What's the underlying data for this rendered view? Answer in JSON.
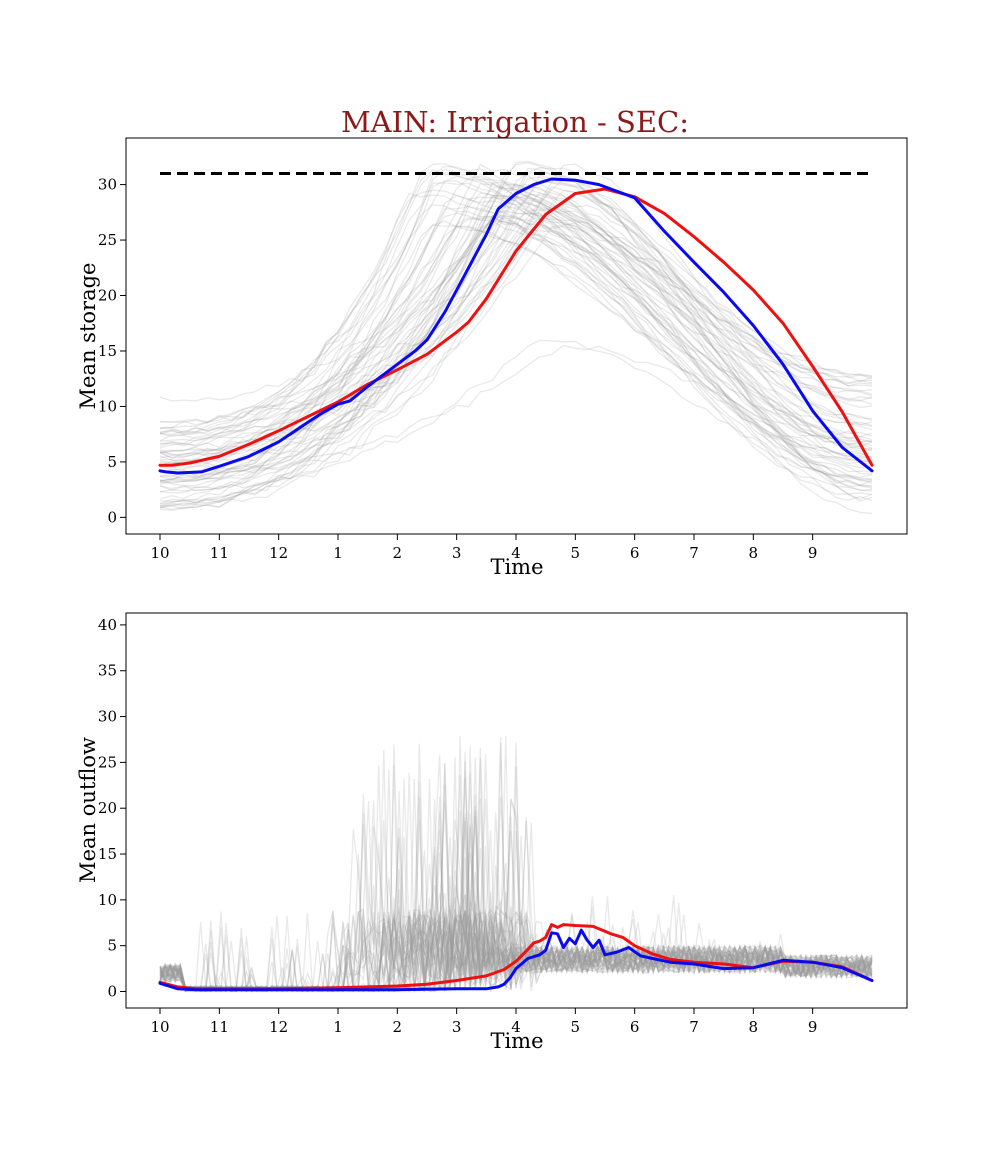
{
  "figure_title": "MAIN: Irrigation - SEC:",
  "colors": {
    "title": "#8b1a1a",
    "mean_series": "#ee1111",
    "highlight_series": "#0a0aee",
    "ensemble": "#9a9a9a",
    "capacity_line": "#000000",
    "axes": "#000000"
  },
  "chart_data": [
    {
      "type": "line",
      "title": "",
      "xlabel": "Time",
      "ylabel": "Mean storage",
      "x_tick_labels": [
        "10",
        "11",
        "12",
        "1",
        "2",
        "3",
        "4",
        "5",
        "6",
        "7",
        "8",
        "9"
      ],
      "x_range_months": [
        0,
        12
      ],
      "ylim": [
        -1.5,
        34.2
      ],
      "y_ticks": [
        0,
        5,
        10,
        15,
        20,
        25,
        30
      ],
      "grid": false,
      "legend": "none",
      "reference_line": {
        "style": "dashed",
        "y": 31,
        "x": [
          0,
          12
        ]
      },
      "series": [
        {
          "role": "mean",
          "x": [
            0,
            0.2,
            0.5,
            1.0,
            1.5,
            2.0,
            2.5,
            3.0,
            3.5,
            4.0,
            4.5,
            5.0,
            5.2,
            5.5,
            6.0,
            6.5,
            7.0,
            7.5,
            8.0,
            8.5,
            9.0,
            9.5,
            10.0,
            10.5,
            11.0,
            11.5,
            12.0
          ],
          "y": [
            4.7,
            4.7,
            4.9,
            5.5,
            6.6,
            7.8,
            9.1,
            10.4,
            12.0,
            13.3,
            14.7,
            16.7,
            17.6,
            19.7,
            24.0,
            27.3,
            29.2,
            29.6,
            28.9,
            27.4,
            25.3,
            23.0,
            20.5,
            17.5,
            13.6,
            9.5,
            4.7
          ]
        },
        {
          "role": "highlight",
          "x": [
            0,
            0.1,
            0.3,
            0.7,
            1.0,
            1.5,
            2.0,
            2.5,
            2.7,
            3.0,
            3.2,
            3.5,
            4.0,
            4.3,
            4.5,
            4.8,
            5.1,
            5.5,
            5.7,
            6.0,
            6.3,
            6.6,
            7.0,
            7.4,
            8.0,
            8.5,
            9.0,
            9.5,
            10.0,
            10.5,
            11.0,
            11.5,
            12.0
          ],
          "y": [
            4.2,
            4.1,
            4.0,
            4.1,
            4.6,
            5.5,
            6.8,
            8.6,
            9.3,
            10.2,
            10.5,
            11.8,
            13.8,
            15.0,
            16.0,
            18.5,
            21.5,
            25.5,
            27.8,
            29.2,
            30.0,
            30.5,
            30.4,
            30.0,
            28.8,
            25.8,
            23.0,
            20.3,
            17.3,
            13.8,
            9.6,
            6.3,
            4.2
          ]
        }
      ],
      "ensemble_count": 60
    },
    {
      "type": "line",
      "title": "",
      "xlabel": "Time",
      "ylabel": "Mean outflow",
      "x_tick_labels": [
        "10",
        "11",
        "12",
        "1",
        "2",
        "3",
        "4",
        "5",
        "6",
        "7",
        "8",
        "9"
      ],
      "x_range_months": [
        0,
        12
      ],
      "ylim": [
        -1.8,
        41.3
      ],
      "y_ticks": [
        0,
        5,
        10,
        15,
        20,
        25,
        30,
        35,
        40
      ],
      "grid": false,
      "legend": "none",
      "series": [
        {
          "role": "mean",
          "x": [
            0,
            0.3,
            0.6,
            1.0,
            2.0,
            3.0,
            3.5,
            4.0,
            4.5,
            5.0,
            5.5,
            5.8,
            6.0,
            6.2,
            6.3,
            6.4,
            6.5,
            6.6,
            6.7,
            6.8,
            7.0,
            7.3,
            7.6,
            7.8,
            8.0,
            8.3,
            8.6,
            9.0,
            9.5,
            10.0,
            10.5,
            11.0,
            11.5,
            12.0
          ],
          "y": [
            1.0,
            0.5,
            0.3,
            0.3,
            0.3,
            0.4,
            0.5,
            0.6,
            0.8,
            1.2,
            1.7,
            2.4,
            3.3,
            4.6,
            5.3,
            5.5,
            5.9,
            7.3,
            7.0,
            7.3,
            7.2,
            7.1,
            6.3,
            5.9,
            5.0,
            4.1,
            3.5,
            3.2,
            3.0,
            2.6,
            3.3,
            3.2,
            2.7,
            1.2
          ]
        },
        {
          "role": "highlight",
          "x": [
            0,
            0.3,
            0.6,
            1.0,
            2.0,
            3.0,
            4.0,
            5.0,
            5.5,
            5.6,
            5.7,
            5.8,
            5.9,
            6.0,
            6.2,
            6.4,
            6.5,
            6.6,
            6.7,
            6.8,
            6.9,
            7.0,
            7.1,
            7.2,
            7.3,
            7.4,
            7.5,
            7.7,
            7.9,
            8.1,
            8.3,
            8.6,
            9.0,
            9.5,
            10.0,
            10.5,
            11.0,
            11.5,
            12.0
          ],
          "y": [
            0.9,
            0.3,
            0.2,
            0.2,
            0.2,
            0.2,
            0.2,
            0.3,
            0.3,
            0.4,
            0.5,
            0.8,
            1.5,
            2.5,
            3.6,
            4.0,
            4.5,
            6.4,
            6.3,
            4.8,
            5.8,
            5.2,
            6.7,
            5.6,
            4.8,
            5.6,
            4.0,
            4.3,
            4.8,
            3.9,
            3.6,
            3.2,
            3.0,
            2.5,
            2.6,
            3.4,
            3.2,
            2.6,
            1.2
          ]
        }
      ],
      "ensemble_count": 60
    }
  ]
}
